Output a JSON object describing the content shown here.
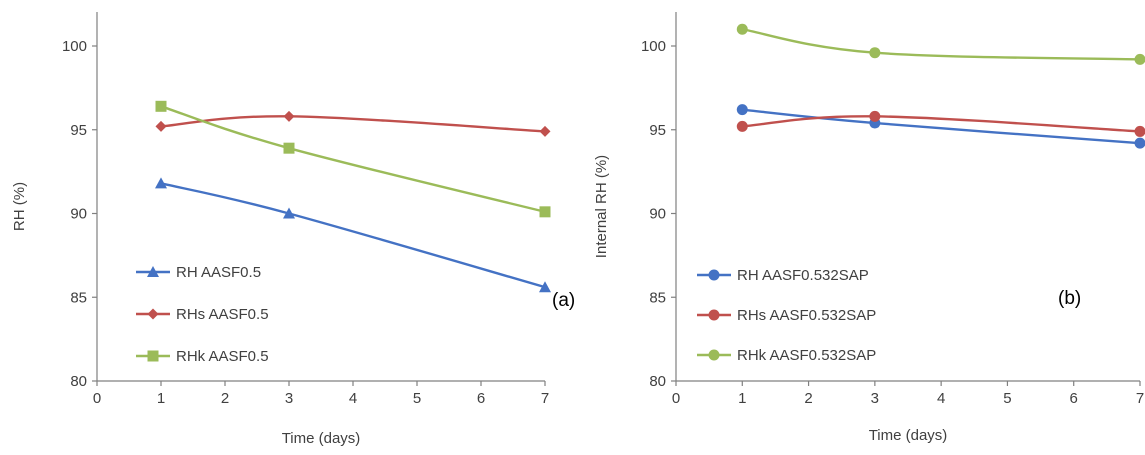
{
  "chart_data": [
    {
      "type": "line",
      "xlabel": "Time (days)",
      "ylabel": "RH (%)",
      "xlim": [
        0,
        7
      ],
      "ylim": [
        80,
        100
      ],
      "xticks": [
        "0",
        "1",
        "2",
        "3",
        "4",
        "5",
        "6",
        "7"
      ],
      "yticks": [
        "80",
        "85",
        "90",
        "95",
        "100"
      ],
      "grid": false,
      "legend_position": "bottom-left",
      "panel_label": "(a)",
      "series": [
        {
          "name": "RH AASF0.5",
          "color": "#4472C4",
          "marker": "triangle",
          "x": [
            1,
            3,
            7
          ],
          "y": [
            91.8,
            90.0,
            85.6
          ]
        },
        {
          "name": "RHs AASF0.5",
          "color": "#C0504D",
          "marker": "diamond",
          "x": [
            1,
            3,
            7
          ],
          "y": [
            95.2,
            95.8,
            94.9
          ]
        },
        {
          "name": "RHk AASF0.5",
          "color": "#9BBB59",
          "marker": "square",
          "x": [
            1,
            3,
            7
          ],
          "y": [
            96.4,
            93.9,
            90.1
          ]
        }
      ]
    },
    {
      "type": "line",
      "xlabel": "Time (days)",
      "ylabel": "Internal RH (%)",
      "xlim": [
        0,
        7
      ],
      "ylim": [
        80,
        100
      ],
      "xticks": [
        "0",
        "1",
        "2",
        "3",
        "4",
        "5",
        "6",
        "7"
      ],
      "yticks": [
        "80",
        "85",
        "90",
        "95",
        "100"
      ],
      "grid": false,
      "legend_position": "bottom-left",
      "panel_label": "(b)",
      "series": [
        {
          "name": "RH AASF0.532SAP",
          "color": "#4472C4",
          "marker": "circle",
          "x": [
            1,
            3,
            7
          ],
          "y": [
            96.2,
            95.4,
            94.2
          ]
        },
        {
          "name": "RHs AASF0.532SAP",
          "color": "#C0504D",
          "marker": "circle",
          "x": [
            1,
            3,
            7
          ],
          "y": [
            95.2,
            95.8,
            94.9
          ]
        },
        {
          "name": "RHk AASF0.532SAP",
          "color": "#9BBB59",
          "marker": "circle",
          "x": [
            1,
            3,
            7
          ],
          "y": [
            101.0,
            99.6,
            99.2
          ]
        }
      ]
    }
  ]
}
